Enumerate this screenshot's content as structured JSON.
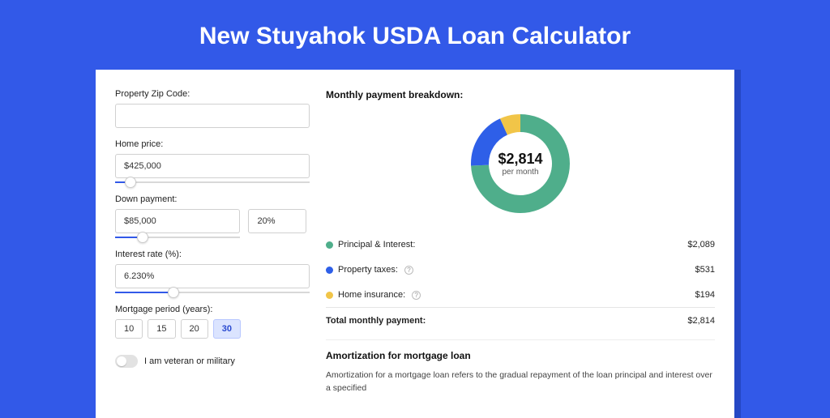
{
  "page": {
    "title": "New Stuyahok USDA Loan Calculator",
    "background_color": "#3259e8",
    "card_background": "#ffffff",
    "card_shadow_color": "#2548c5"
  },
  "form": {
    "zip": {
      "label": "Property Zip Code:",
      "value": ""
    },
    "home_price": {
      "label": "Home price:",
      "value": "$425,000",
      "slider_fill_pct": 8
    },
    "down_payment": {
      "label": "Down payment:",
      "value": "$85,000",
      "pct": "20%",
      "slider_fill_pct": 22
    },
    "interest_rate": {
      "label": "Interest rate (%):",
      "value": "6.230%",
      "slider_fill_pct": 30
    },
    "mortgage_period": {
      "label": "Mortgage period (years):",
      "options": [
        "10",
        "15",
        "20",
        "30"
      ],
      "selected": "30"
    },
    "veteran_toggle": {
      "label": "I am veteran or military",
      "on": false
    }
  },
  "breakdown": {
    "heading": "Monthly payment breakdown:",
    "center_amount": "$2,814",
    "center_sub": "per month",
    "donut": {
      "radius": 50,
      "stroke_width": 22,
      "segments": [
        {
          "key": "principal_interest",
          "label": "Principal & Interest:",
          "value": "$2,089",
          "color": "#4fae8b",
          "pct": 74.2
        },
        {
          "key": "property_taxes",
          "label": "Property taxes:",
          "value": "$531",
          "color": "#2e5fe8",
          "pct": 18.9,
          "has_info": true
        },
        {
          "key": "home_insurance",
          "label": "Home insurance:",
          "value": "$194",
          "color": "#f1c548",
          "pct": 6.9,
          "has_info": true
        }
      ]
    },
    "total": {
      "label": "Total monthly payment:",
      "value": "$2,814"
    }
  },
  "amortization": {
    "heading": "Amortization for mortgage loan",
    "text": "Amortization for a mortgage loan refers to the gradual repayment of the loan principal and interest over a specified"
  }
}
